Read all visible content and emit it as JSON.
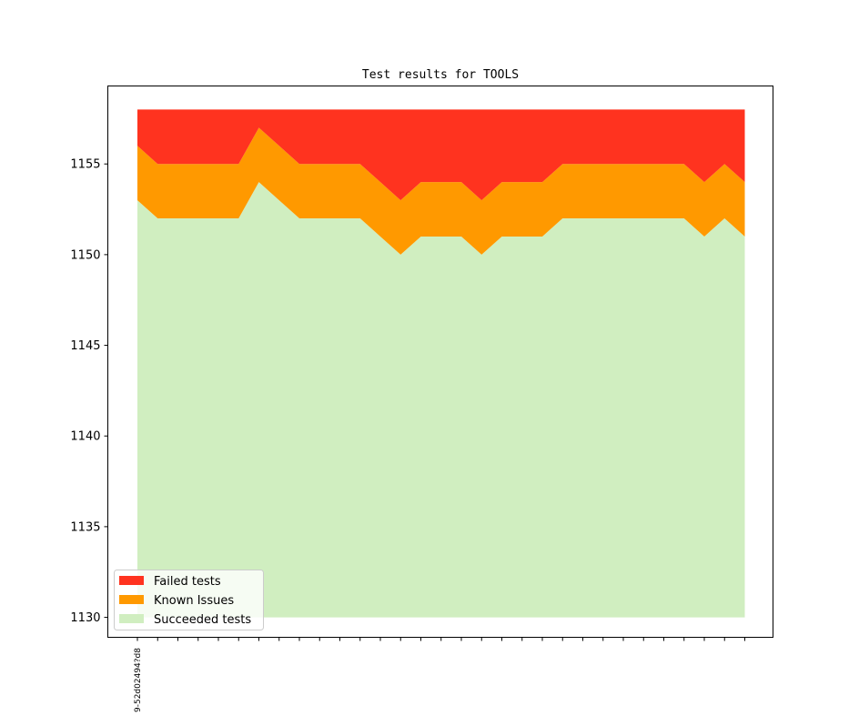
{
  "chart_data": {
    "type": "area",
    "title": "Test results for TOOLS",
    "xlabel": "",
    "ylabel": "",
    "ylim": [
      1128.9,
      1159.3
    ],
    "baseline": 1130,
    "yticks": [
      1130,
      1135,
      1140,
      1145,
      1150,
      1155
    ],
    "x_count": 31,
    "xtick_labels": [
      "9-52d02494?d8"
    ],
    "legend_position": "lower-left",
    "grid": false,
    "series": [
      {
        "name": "Succeeded tests",
        "color": "#d0eec0",
        "values": [
          1153,
          1152,
          1152,
          1152,
          1152,
          1152,
          1154,
          1153,
          1152,
          1152,
          1152,
          1152,
          1151,
          1150,
          1151,
          1151,
          1151,
          1150,
          1151,
          1151,
          1151,
          1152,
          1152,
          1152,
          1152,
          1152,
          1152,
          1152,
          1151,
          1152,
          1151
        ]
      },
      {
        "name": "Known Issues",
        "color": "#ff9900",
        "values": [
          3,
          3,
          3,
          3,
          3,
          3,
          3,
          3,
          3,
          3,
          3,
          3,
          3,
          3,
          3,
          3,
          3,
          3,
          3,
          3,
          3,
          3,
          3,
          3,
          3,
          3,
          3,
          3,
          3,
          3,
          3
        ]
      },
      {
        "name": "Failed tests",
        "color": "#ff331f",
        "values": [
          2,
          3,
          3,
          3,
          3,
          3,
          1,
          2,
          3,
          3,
          3,
          3,
          4,
          5,
          4,
          4,
          4,
          5,
          4,
          4,
          4,
          3,
          3,
          3,
          3,
          3,
          3,
          3,
          4,
          3,
          4
        ]
      }
    ]
  }
}
